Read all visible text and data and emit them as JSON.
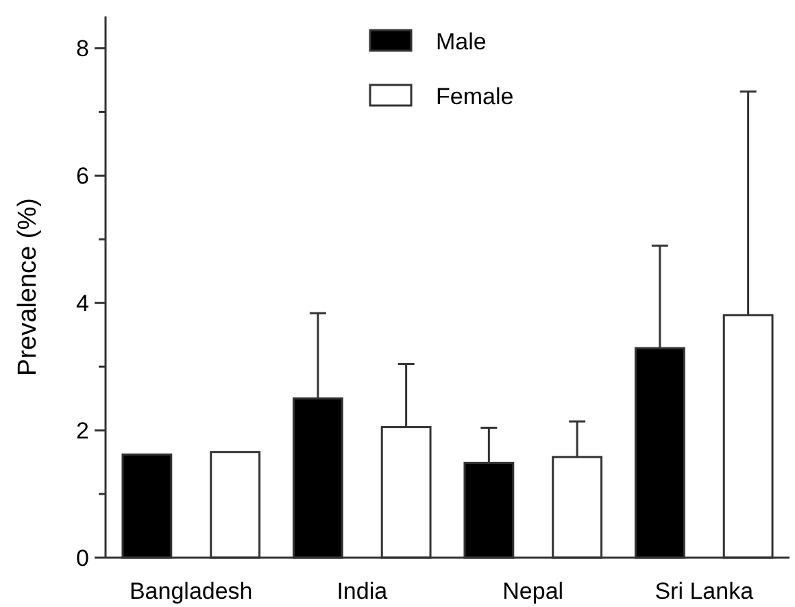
{
  "chart_data": {
    "type": "bar",
    "ylabel": "Prevalence (%)",
    "categories": [
      "Bangladesh",
      "India",
      "Nepal",
      "Sri Lanka"
    ],
    "series": [
      {
        "name": "Male",
        "color": "#000000",
        "values": [
          1.62,
          2.5,
          1.49,
          3.29
        ],
        "errors": [
          null,
          [
            2.5,
            3.84
          ],
          [
            1.49,
            2.04
          ],
          [
            3.29,
            4.9
          ]
        ]
      },
      {
        "name": "Female",
        "color": "#ffffff",
        "values": [
          1.66,
          2.05,
          1.58,
          3.81
        ],
        "errors": [
          null,
          [
            2.05,
            3.04
          ],
          [
            1.58,
            2.14
          ],
          [
            3.81,
            7.32
          ]
        ]
      }
    ],
    "ylim": [
      0,
      8.5
    ],
    "yticks": [
      0,
      {
        "value": 1,
        "label": null
      },
      2,
      {
        "value": 3,
        "label": null
      },
      4,
      {
        "value": 5,
        "label": null
      },
      6,
      {
        "value": 7,
        "label": null
      },
      8
    ],
    "legend": "top",
    "grid": false
  }
}
